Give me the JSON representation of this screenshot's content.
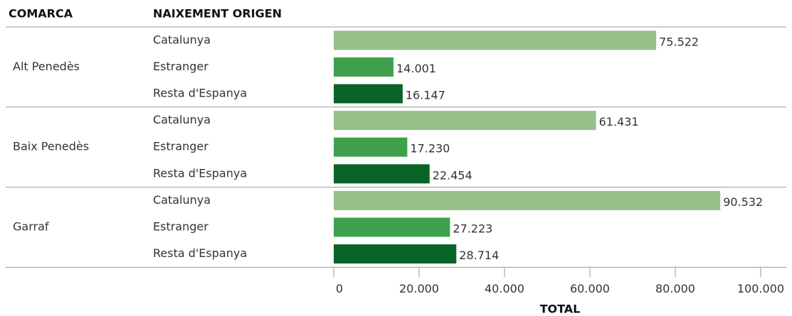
{
  "chart_data": {
    "type": "bar",
    "orientation": "horizontal",
    "headers": [
      "COMARCA",
      "NAIXEMENT ORIGEN"
    ],
    "groups": [
      "Alt Penedès",
      "Baix Penedès",
      "Garraf"
    ],
    "series": [
      {
        "name": "Catalunya",
        "color": "#98c08a",
        "values": [
          75522,
          61431,
          90532
        ],
        "value_labels": [
          "75.522",
          "61.431",
          "90.532"
        ]
      },
      {
        "name": "Estranger",
        "color": "#3fa14c",
        "values": [
          14001,
          17230,
          27223
        ],
        "value_labels": [
          "14.001",
          "17.230",
          "27.223"
        ]
      },
      {
        "name": "Resta d'Espanya",
        "color": "#0a6428",
        "values": [
          16147,
          22454,
          28714
        ],
        "value_labels": [
          "16.147",
          "22.454",
          "28.714"
        ]
      }
    ],
    "xlabel": "TOTAL",
    "xlim": [
      0,
      100000
    ],
    "xticks": [
      0,
      {
        "value": 20000,
        "label": "20.000"
      },
      {
        "value": 40000,
        "label": "40.000"
      },
      {
        "value": 60000,
        "label": "60.000"
      },
      {
        "value": 80000,
        "label": "80.000"
      },
      {
        "value": 100000,
        "label": "100.000"
      }
    ]
  }
}
